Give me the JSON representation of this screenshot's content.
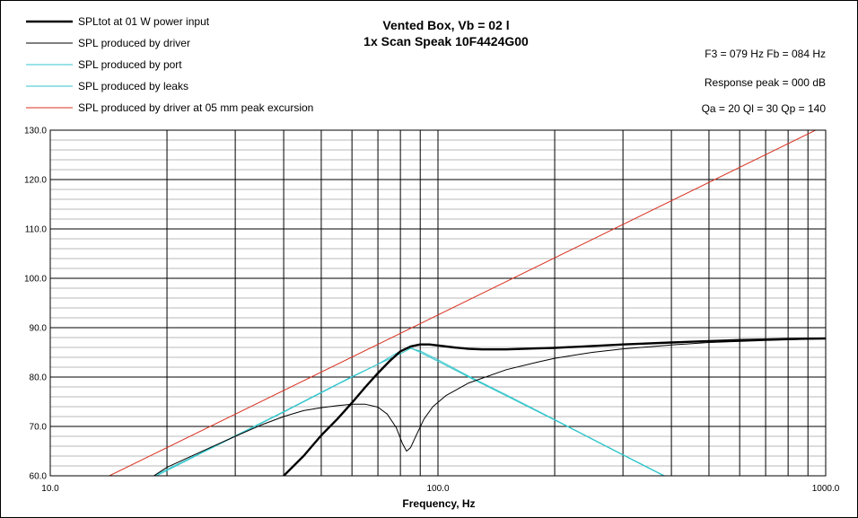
{
  "chart_data": {
    "type": "line",
    "title": "Vented Box, Vb = 02 l",
    "subtitle": "1x Scan Speak 10F4424G00",
    "xlabel": "Frequency, Hz",
    "ylabel": "",
    "x_scale": "log",
    "xlim": [
      10,
      1000
    ],
    "ylim": [
      60,
      130
    ],
    "grid": true,
    "legend_position": "top-left",
    "x_tick_labels": [
      "10.0",
      "100.0",
      "1000.0"
    ],
    "y_tick_labels": [
      "60.0",
      "70.0",
      "80.0",
      "90.0",
      "100.0",
      "110.0",
      "120.0",
      "130.0"
    ],
    "info": {
      "line1": "F3 = 079  Hz  Fb = 084  Hz",
      "line2": "Response  peak = 000  dB",
      "line3": "Qa = 20  Ql = 30  Qp = 140"
    },
    "series": [
      {
        "name": "SPLtot at 01 W power input",
        "color": "#000000",
        "width": "thick",
        "points": [
          [
            40,
            60
          ],
          [
            45,
            64
          ],
          [
            50,
            68.2
          ],
          [
            55,
            71.5
          ],
          [
            60,
            74.8
          ],
          [
            65,
            78
          ],
          [
            70,
            80.8
          ],
          [
            75,
            83.2
          ],
          [
            80,
            85.2
          ],
          [
            85,
            86.2
          ],
          [
            90,
            86.6
          ],
          [
            95,
            86.6
          ],
          [
            100,
            86.4
          ],
          [
            110,
            86
          ],
          [
            120,
            85.7
          ],
          [
            130,
            85.6
          ],
          [
            150,
            85.6
          ],
          [
            180,
            85.8
          ],
          [
            200,
            85.9
          ],
          [
            250,
            86.3
          ],
          [
            300,
            86.6
          ],
          [
            400,
            87
          ],
          [
            500,
            87.3
          ],
          [
            600,
            87.5
          ],
          [
            700,
            87.6
          ],
          [
            800,
            87.7
          ],
          [
            1000,
            87.8
          ]
        ]
      },
      {
        "name": "SPL produced by driver",
        "color": "#000000",
        "width": "thin",
        "points": [
          [
            18.5,
            60
          ],
          [
            20,
            61.7
          ],
          [
            25,
            65.2
          ],
          [
            30,
            68
          ],
          [
            35,
            70.3
          ],
          [
            40,
            72
          ],
          [
            45,
            73.2
          ],
          [
            50,
            73.8
          ],
          [
            55,
            74.2
          ],
          [
            60,
            74.5
          ],
          [
            65,
            74.5
          ],
          [
            70,
            73.9
          ],
          [
            74,
            72.5
          ],
          [
            78,
            69.8
          ],
          [
            81,
            66.5
          ],
          [
            83,
            65
          ],
          [
            85,
            65.7
          ],
          [
            88,
            68.3
          ],
          [
            92,
            71.5
          ],
          [
            97,
            74
          ],
          [
            105,
            76.3
          ],
          [
            120,
            78.8
          ],
          [
            150,
            81.5
          ],
          [
            180,
            83
          ],
          [
            200,
            83.8
          ],
          [
            250,
            85
          ],
          [
            300,
            85.7
          ],
          [
            400,
            86.5
          ],
          [
            500,
            87
          ],
          [
            700,
            87.4
          ],
          [
            1000,
            87.8
          ]
        ]
      },
      {
        "name": "SPL produced by port",
        "color": "#33c6cc",
        "width": "thin",
        "points": [
          [
            18.8,
            60
          ],
          [
            25,
            64.9
          ],
          [
            30,
            68
          ],
          [
            40,
            72.9
          ],
          [
            50,
            76.8
          ],
          [
            60,
            80
          ],
          [
            70,
            82.6
          ],
          [
            75,
            84
          ],
          [
            80,
            85.3
          ],
          [
            85,
            85.9
          ],
          [
            90,
            85
          ],
          [
            100,
            83.2
          ],
          [
            120,
            80
          ],
          [
            150,
            76.2
          ],
          [
            200,
            71.3
          ],
          [
            300,
            64.2
          ],
          [
            400,
            59.2
          ]
        ]
      },
      {
        "name": "SPL produced by leaks",
        "color": "#33c6cc",
        "width": "thin",
        "points": [
          [
            18.5,
            60
          ],
          [
            25,
            65
          ],
          [
            30,
            68.1
          ],
          [
            40,
            73
          ],
          [
            50,
            76.9
          ],
          [
            60,
            80.1
          ],
          [
            70,
            82.6
          ],
          [
            80,
            84.7
          ],
          [
            85,
            85.8
          ],
          [
            90,
            85.3
          ],
          [
            100,
            83.5
          ],
          [
            120,
            80.2
          ],
          [
            150,
            76.4
          ],
          [
            200,
            71.4
          ],
          [
            300,
            64.3
          ],
          [
            400,
            59.3
          ]
        ]
      },
      {
        "name": "SPL produced by driver at 05 mm peak excursion",
        "color": "#d83020",
        "width": "thin",
        "points": [
          [
            14.2,
            60
          ],
          [
            1000,
            131
          ]
        ]
      }
    ]
  }
}
